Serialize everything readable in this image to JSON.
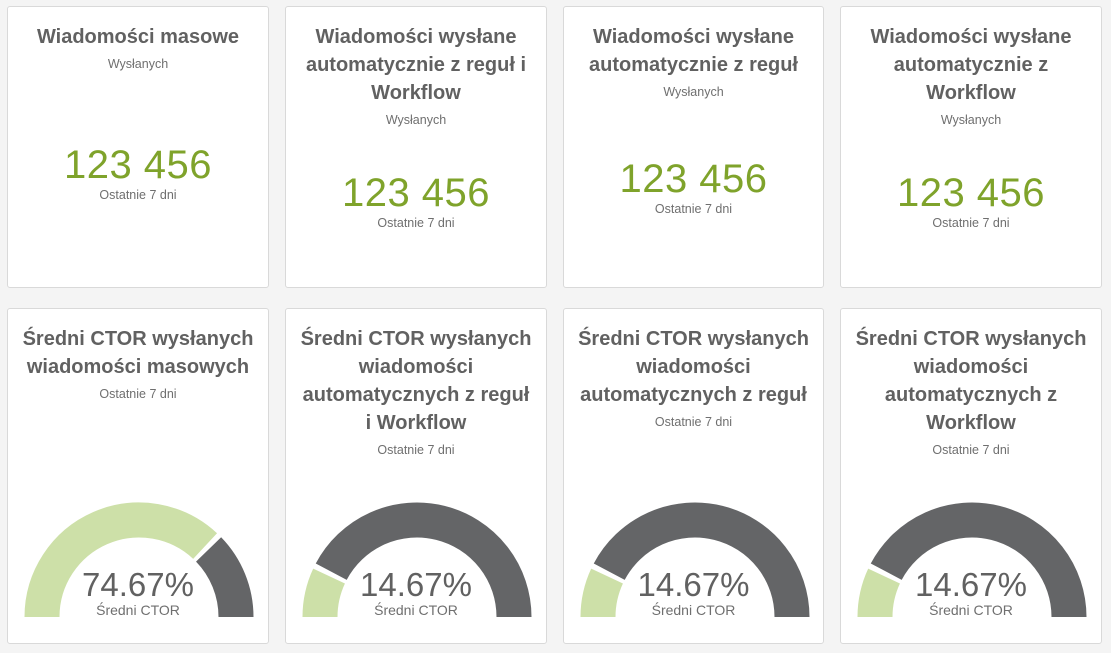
{
  "colors": {
    "value_green": "#7fa32b",
    "gauge_fill": "#cde0a8",
    "gauge_rest": "#646567"
  },
  "top_cards": [
    {
      "title": "Wiadomości masowe",
      "subtitle": "Wysłanych",
      "value": "123 456",
      "period": "Ostatnie 7 dni"
    },
    {
      "title": "Wiadomości wysłane automatycznie z reguł i Workflow",
      "subtitle": "Wysłanych",
      "value": "123 456",
      "period": "Ostatnie 7 dni"
    },
    {
      "title": "Wiadomości wysłane automatycznie z reguł",
      "subtitle": "Wysłanych",
      "value": "123 456",
      "period": "Ostatnie 7 dni"
    },
    {
      "title": "Wiadomości wysłane automatycznie z Workflow",
      "subtitle": "Wysłanych",
      "value": "123 456",
      "period": "Ostatnie 7 dni"
    }
  ],
  "bottom_cards": [
    {
      "title": "Średni CTOR wysłanych wiadomości masowych",
      "subtitle": "Ostatnie 7 dni",
      "percent": 74.67,
      "percent_text": "74.67%",
      "gauge_label": "Średni CTOR"
    },
    {
      "title": "Średni CTOR wysłanych wiadomości automatycznych z reguł i Workflow",
      "subtitle": "Ostatnie 7 dni",
      "percent": 14.67,
      "percent_text": "14.67%",
      "gauge_label": "Średni CTOR"
    },
    {
      "title": "Średni CTOR wysłanych wiadomości automatycznych z reguł",
      "subtitle": "Ostatnie 7 dni",
      "percent": 14.67,
      "percent_text": "14.67%",
      "gauge_label": "Średni CTOR"
    },
    {
      "title": "Średni CTOR wysłanych wiadomości automatycznych z Workflow",
      "subtitle": "Ostatnie 7 dni",
      "percent": 14.67,
      "percent_text": "14.67%",
      "gauge_label": "Średni CTOR"
    }
  ]
}
